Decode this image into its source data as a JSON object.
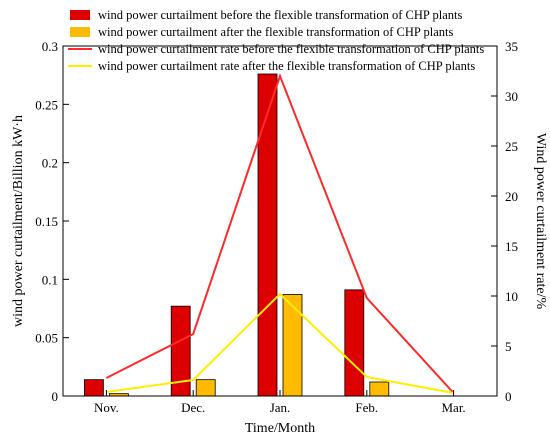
{
  "chart_data": {
    "type": "bar",
    "title": "",
    "xlabel": "Time/Month",
    "ylabel": "wind power curtailment/Billion kW·h",
    "ylabel_right": "Wind power curtailment rate/%",
    "categories": [
      "Nov.",
      "Dec.",
      "Jan.",
      "Feb.",
      "Mar."
    ],
    "ylim": [
      0,
      0.3
    ],
    "ylim_right": [
      0,
      35
    ],
    "yticks": [
      "0",
      "0.05",
      "0.1",
      "0.15",
      "0.2",
      "0.25",
      "0.3"
    ],
    "yticks_right": [
      "0",
      "5",
      "10",
      "15",
      "20",
      "25",
      "30",
      "35"
    ],
    "grid": false,
    "legend_position": "top",
    "bar_series": [
      {
        "name": "wind power curtailment before the flexible transformation of CHP plants",
        "color": "#dd0000",
        "values": [
          0.014,
          0.077,
          0.276,
          0.091,
          0.0
        ]
      },
      {
        "name": "wind power curtailment after the flexible transformation of CHP plants",
        "color": "#ffbb00",
        "values": [
          0.002,
          0.014,
          0.087,
          0.012,
          0.0
        ]
      }
    ],
    "line_series": [
      {
        "name": "wind power curtailment rate before the flexible transformation of CHP plants",
        "color": "#ff2a2a",
        "axis": "right",
        "values": [
          1.8,
          6.2,
          32.0,
          9.8,
          0.3
        ]
      },
      {
        "name": "wind power curtailment rate  after the flexible transformation of CHP plants",
        "color": "#ffee00",
        "axis": "right",
        "values": [
          0.4,
          1.6,
          10.2,
          1.9,
          0.3
        ]
      }
    ]
  }
}
